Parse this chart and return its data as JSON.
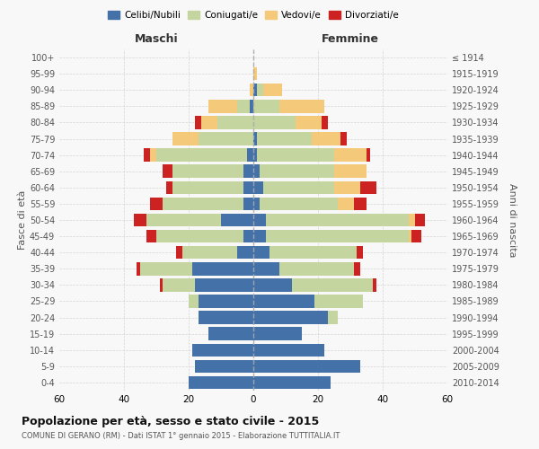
{
  "age_groups": [
    "0-4",
    "5-9",
    "10-14",
    "15-19",
    "20-24",
    "25-29",
    "30-34",
    "35-39",
    "40-44",
    "45-49",
    "50-54",
    "55-59",
    "60-64",
    "65-69",
    "70-74",
    "75-79",
    "80-84",
    "85-89",
    "90-94",
    "95-99",
    "100+"
  ],
  "birth_years": [
    "2010-2014",
    "2005-2009",
    "2000-2004",
    "1995-1999",
    "1990-1994",
    "1985-1989",
    "1980-1984",
    "1975-1979",
    "1970-1974",
    "1965-1969",
    "1960-1964",
    "1955-1959",
    "1950-1954",
    "1945-1949",
    "1940-1944",
    "1935-1939",
    "1930-1934",
    "1925-1929",
    "1920-1924",
    "1915-1919",
    "≤ 1914"
  ],
  "colors": {
    "celibe": "#4472a8",
    "coniugato": "#c5d5a0",
    "vedovo": "#f5c97a",
    "divorziato": "#cc2222"
  },
  "males": {
    "celibe": [
      20,
      18,
      19,
      14,
      17,
      17,
      18,
      19,
      5,
      3,
      10,
      3,
      3,
      3,
      2,
      0,
      0,
      1,
      0,
      0,
      0
    ],
    "coniugato": [
      0,
      0,
      0,
      0,
      0,
      3,
      10,
      16,
      17,
      27,
      23,
      25,
      22,
      22,
      28,
      17,
      11,
      4,
      0,
      0,
      0
    ],
    "vedovo": [
      0,
      0,
      0,
      0,
      0,
      0,
      0,
      0,
      0,
      0,
      0,
      0,
      0,
      0,
      2,
      8,
      5,
      9,
      1,
      0,
      0
    ],
    "divorziato": [
      0,
      0,
      0,
      0,
      0,
      0,
      1,
      1,
      2,
      3,
      4,
      4,
      2,
      3,
      2,
      0,
      2,
      0,
      0,
      0,
      0
    ]
  },
  "females": {
    "nubile": [
      24,
      33,
      22,
      15,
      23,
      19,
      12,
      8,
      5,
      4,
      4,
      2,
      3,
      2,
      1,
      1,
      0,
      0,
      1,
      0,
      0
    ],
    "coniugata": [
      0,
      0,
      0,
      0,
      3,
      15,
      25,
      23,
      27,
      44,
      44,
      24,
      22,
      23,
      24,
      17,
      13,
      8,
      2,
      0,
      0
    ],
    "vedova": [
      0,
      0,
      0,
      0,
      0,
      0,
      0,
      0,
      0,
      1,
      2,
      5,
      8,
      10,
      10,
      9,
      8,
      14,
      6,
      1,
      0
    ],
    "divorziata": [
      0,
      0,
      0,
      0,
      0,
      0,
      1,
      2,
      2,
      3,
      3,
      4,
      5,
      0,
      1,
      2,
      2,
      0,
      0,
      0,
      0
    ]
  },
  "title": "Popolazione per età, sesso e stato civile - 2015",
  "subtitle": "COMUNE DI GERANO (RM) - Dati ISTAT 1° gennaio 2015 - Elaborazione TUTTITALIA.IT",
  "xlim": 60,
  "legend_labels": [
    "Celibi/Nubili",
    "Coniugati/e",
    "Vedovi/e",
    "Divorziati/e"
  ],
  "xlabel_left": "Maschi",
  "xlabel_right": "Femmine",
  "ylabel_left": "Fasce di età",
  "ylabel_right": "Anni di nascita",
  "background_color": "#f8f8f8",
  "grid_color": "#cccccc"
}
